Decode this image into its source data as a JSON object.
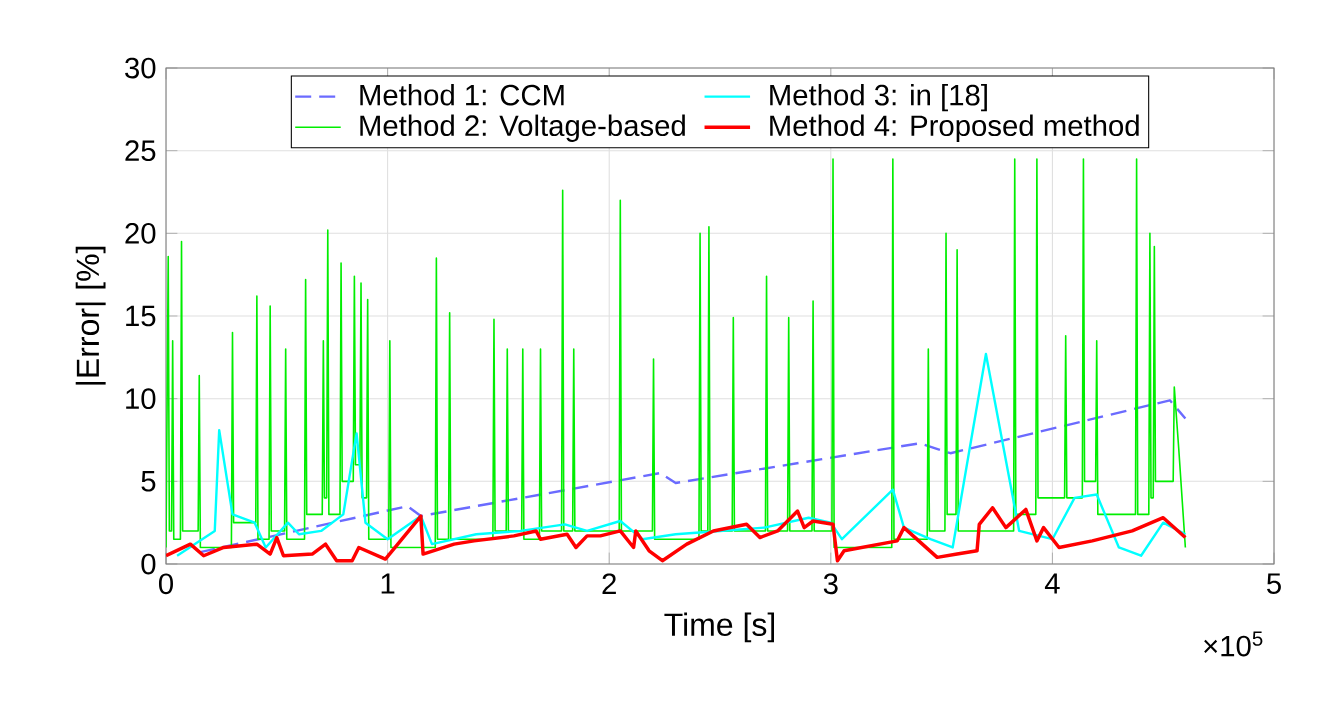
{
  "chart_data": {
    "type": "line",
    "xlabel": "Time [s]",
    "ylabel": "|Error| [%]",
    "xlim": [
      0,
      5
    ],
    "ylim": [
      0,
      30
    ],
    "xticks": [
      0,
      1,
      2,
      3,
      4,
      5
    ],
    "yticks": [
      0,
      5,
      10,
      15,
      20,
      25,
      30
    ],
    "grid": true,
    "legend": "top",
    "annotations": [
      "×10$^{5}$"
    ],
    "series": [
      {
        "name": "Method 1: CCM",
        "color": "#6b6bff",
        "line_style": "dashed",
        "x": [
          0.15,
          1.09,
          1.15,
          2.23,
          2.3,
          3.4,
          3.54,
          4.53,
          4.6
        ],
        "values": [
          0.7,
          3.5,
          2.9,
          5.5,
          4.9,
          7.3,
          6.7,
          9.9,
          8.8
        ]
      },
      {
        "name": "Method 2: Voltage-based",
        "color": "#00ee00",
        "line_style": "solid",
        "x": [
          0,
          0.01,
          0.015,
          0.025,
          0.03,
          0.035,
          0.065,
          0.07,
          0.075,
          0.145,
          0.15,
          0.155,
          0.295,
          0.3,
          0.305,
          0.405,
          0.41,
          0.415,
          0.465,
          0.47,
          0.475,
          0.535,
          0.54,
          0.545,
          0.625,
          0.63,
          0.635,
          0.705,
          0.71,
          0.715,
          0.725,
          0.73,
          0.735,
          0.785,
          0.79,
          0.795,
          0.845,
          0.85,
          0.855,
          0.875,
          0.88,
          0.885,
          0.905,
          0.91,
          0.915,
          1.005,
          1.01,
          1.015,
          1.215,
          1.22,
          1.225,
          1.275,
          1.28,
          1.285,
          1.475,
          1.48,
          1.485,
          1.535,
          1.54,
          1.545,
          1.605,
          1.61,
          1.615,
          1.685,
          1.69,
          1.695,
          1.785,
          1.79,
          1.795,
          1.835,
          1.84,
          1.845,
          2.045,
          2.05,
          2.055,
          2.195,
          2.2,
          2.205,
          2.405,
          2.41,
          2.415,
          2.445,
          2.45,
          2.455,
          2.555,
          2.56,
          2.565,
          2.705,
          2.71,
          2.715,
          2.805,
          2.81,
          2.815,
          2.915,
          2.92,
          2.925,
          3.005,
          3.01,
          3.015,
          3.275,
          3.28,
          3.285,
          3.435,
          3.44,
          3.445,
          3.515,
          3.52,
          3.525,
          3.565,
          3.57,
          3.575,
          3.825,
          3.83,
          3.835,
          3.925,
          3.93,
          3.935,
          4.055,
          4.06,
          4.065,
          4.135,
          4.14,
          4.145,
          4.195,
          4.2,
          4.205,
          4.375,
          4.38,
          4.385,
          4.435,
          4.44,
          4.445,
          4.455,
          4.46,
          4.465,
          4.545,
          4.55,
          4.57,
          4.6
        ],
        "values": [
          1,
          18.6,
          2,
          2,
          13.5,
          1.5,
          1.5,
          19.5,
          2,
          2,
          11.4,
          1,
          1,
          14.0,
          2.5,
          2.5,
          16.2,
          1.5,
          1.5,
          15.6,
          2,
          2,
          13,
          1.5,
          1.5,
          17.2,
          3,
          3,
          13.5,
          4,
          4,
          20.2,
          3,
          3,
          18.2,
          5,
          5,
          17.4,
          6,
          6,
          17,
          4,
          4,
          16,
          1.5,
          1.5,
          13.5,
          1,
          1,
          18.5,
          1.5,
          1.5,
          15.2,
          1.5,
          1.5,
          14.8,
          2,
          2,
          13,
          2,
          2,
          13,
          1.5,
          1.5,
          13,
          2,
          2,
          22.6,
          2,
          2,
          13,
          2,
          2,
          22,
          2,
          2,
          12.4,
          1.5,
          1.5,
          20,
          2,
          2,
          20.4,
          2,
          2,
          14.9,
          2,
          2,
          17.4,
          2,
          2,
          14.9,
          2,
          2,
          15.9,
          2,
          2,
          24.5,
          1,
          1,
          24.5,
          1.5,
          1.5,
          13,
          2,
          2,
          20,
          3,
          3,
          19,
          2,
          2,
          24.5,
          3,
          3,
          24.5,
          4,
          4,
          13.8,
          4,
          4,
          24.5,
          5,
          5,
          13.5,
          3,
          3,
          24.5,
          3,
          3,
          20,
          4,
          4,
          19.2,
          5,
          5,
          10.7,
          7,
          1
        ]
      },
      {
        "name": "Method 3: in [18]",
        "color": "#00ffff",
        "line_style": "solid",
        "x": [
          0.05,
          0.22,
          0.24,
          0.3,
          0.4,
          0.45,
          0.55,
          0.6,
          0.7,
          0.8,
          0.86,
          0.9,
          1.0,
          1.15,
          1.2,
          1.4,
          1.6,
          1.8,
          1.9,
          2.05,
          2.15,
          2.3,
          2.5,
          2.7,
          2.9,
          3.0,
          3.05,
          3.28,
          3.33,
          3.45,
          3.55,
          3.7,
          3.85,
          4.0,
          4.1,
          4.2,
          4.3,
          4.4,
          4.5,
          4.6
        ],
        "values": [
          0.5,
          2.0,
          8.1,
          3.0,
          2.5,
          1.0,
          2.5,
          1.8,
          2.0,
          3.0,
          7.9,
          2.5,
          1.5,
          2.9,
          1.2,
          1.8,
          2.0,
          2.4,
          2.0,
          2.6,
          1.5,
          1.8,
          2.0,
          2.2,
          2.8,
          2.5,
          1.5,
          4.5,
          2.2,
          1.5,
          1.0,
          12.7,
          2.0,
          1.5,
          4.0,
          4.2,
          1.0,
          0.5,
          2.5,
          1.8
        ]
      },
      {
        "name": "Method 4: Proposed method",
        "color": "#ff0000",
        "line_style": "solid",
        "x": [
          0,
          0.11,
          0.17,
          0.26,
          0.41,
          0.47,
          0.5,
          0.53,
          0.66,
          0.72,
          0.77,
          0.84,
          0.87,
          0.99,
          1.15,
          1.16,
          1.3,
          1.39,
          1.57,
          1.67,
          1.69,
          1.81,
          1.85,
          1.9,
          1.96,
          2.05,
          2.11,
          2.12,
          2.18,
          2.24,
          2.35,
          2.47,
          2.62,
          2.68,
          2.76,
          2.85,
          2.88,
          2.92,
          3.01,
          3.03,
          3.06,
          3.3,
          3.33,
          3.48,
          3.57,
          3.66,
          3.67,
          3.73,
          3.79,
          3.88,
          3.93,
          3.96,
          4.03,
          4.18,
          4.36,
          4.5,
          4.6
        ],
        "values": [
          0.5,
          1.2,
          0.5,
          1.0,
          1.2,
          0.6,
          1.6,
          0.5,
          0.6,
          1.2,
          0.2,
          0.2,
          1.0,
          0.3,
          2.9,
          0.6,
          1.2,
          1.4,
          1.7,
          2.0,
          1.5,
          1.8,
          1.0,
          1.7,
          1.7,
          2.0,
          1.0,
          2.0,
          0.8,
          0.2,
          1.2,
          2.0,
          2.4,
          1.6,
          2.0,
          3.2,
          2.2,
          2.6,
          2.4,
          0.2,
          0.8,
          1.4,
          2.2,
          0.4,
          0.6,
          0.8,
          2.4,
          3.4,
          2.2,
          3.3,
          1.4,
          2.2,
          1.0,
          1.4,
          2.0,
          2.8,
          1.6
        ]
      }
    ]
  }
}
